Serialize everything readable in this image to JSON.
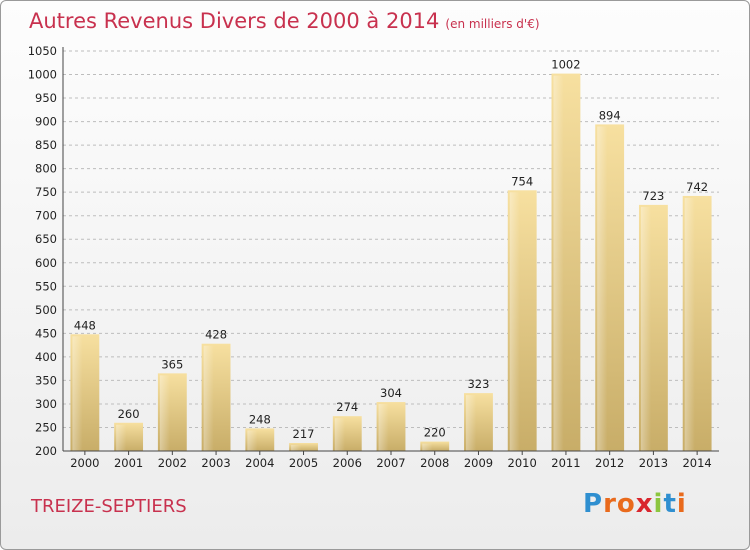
{
  "chart_data": {
    "type": "bar",
    "title": "Autres Revenus Divers de 2000 à 2014",
    "subtitle": "(en milliers d'€)",
    "categories": [
      "2000",
      "2001",
      "2002",
      "2003",
      "2004",
      "2005",
      "2006",
      "2007",
      "2008",
      "2009",
      "2010",
      "2011",
      "2012",
      "2013",
      "2014"
    ],
    "values": [
      448,
      260,
      365,
      428,
      248,
      217,
      274,
      304,
      220,
      323,
      754,
      1002,
      894,
      723,
      742
    ],
    "ylim": [
      200,
      1050
    ],
    "yticks": [
      200,
      250,
      300,
      350,
      400,
      450,
      500,
      550,
      600,
      650,
      700,
      750,
      800,
      850,
      900,
      950,
      1000,
      1050
    ],
    "grid": true,
    "bar_color": "#e9cd85",
    "legend": false
  },
  "footer": {
    "commune": "TREIZE-SEPTIERS",
    "logo_letters": [
      {
        "ch": "P",
        "color": "#2f8fd0"
      },
      {
        "ch": "r",
        "color": "#e96a1c"
      },
      {
        "ch": "o",
        "color": "#e96a1c"
      },
      {
        "ch": "x",
        "color": "#d9262e"
      },
      {
        "ch": "i",
        "color": "#8cc63f"
      },
      {
        "ch": "t",
        "color": "#2f8fd0"
      },
      {
        "ch": "i",
        "color": "#e96a1c"
      }
    ]
  }
}
